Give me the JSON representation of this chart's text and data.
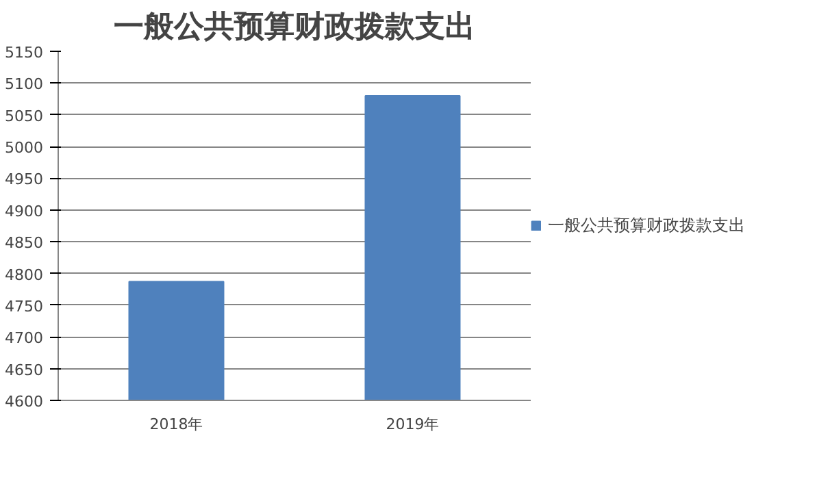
{
  "chart_data": {
    "type": "bar",
    "title": "一般公共预算财政拨款支出",
    "categories": [
      "2018年",
      "2019年"
    ],
    "series": [
      {
        "name": "一般公共预算财政拨款支出",
        "color": "#4f81bd",
        "values": [
          4787,
          5080
        ]
      }
    ],
    "ylim": [
      4600,
      5150
    ],
    "yticks": [
      4600,
      4650,
      4700,
      4750,
      4800,
      4850,
      4900,
      4950,
      5000,
      5050,
      5100,
      5150
    ],
    "grid": "y",
    "legend": "right"
  }
}
